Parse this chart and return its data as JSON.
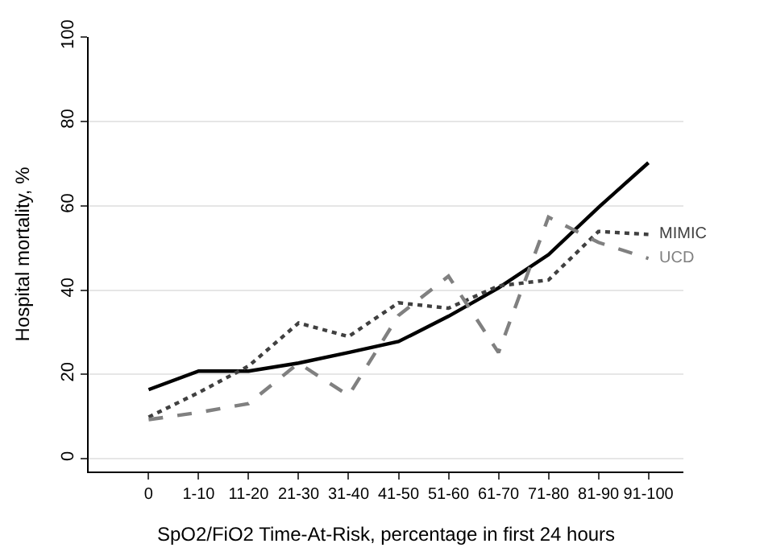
{
  "chart_data": {
    "type": "line",
    "xlabel": "SpO2/FiO2 Time-At-Risk, percentage in first 24 hours",
    "ylabel": "Hospital mortality, %",
    "categories": [
      "0",
      "1-10",
      "11-20",
      "21-30",
      "31-40",
      "41-50",
      "51-60",
      "61-70",
      "71-80",
      "81-90",
      "91-100"
    ],
    "series": [
      {
        "color": "#000000",
        "line_style": "solid",
        "values": [
          16.4,
          20.8,
          20.8,
          22.7,
          25.2,
          27.8,
          33.8,
          40.5,
          48.4,
          59.6,
          70.2
        ]
      },
      {
        "name": "MIMIC",
        "color": "#404040",
        "line_style": "dotted",
        "values": [
          9.9,
          15.7,
          22,
          32.2,
          29,
          37,
          35.7,
          41,
          42.4,
          53.9,
          53.2
        ]
      },
      {
        "name": "UCD",
        "color": "#808080",
        "line_style": "dashed",
        "values": [
          9.3,
          11,
          13.1,
          22.7,
          15,
          34,
          43.3,
          25.2,
          57.3,
          51.3,
          47.5
        ]
      }
    ],
    "ylim": [
      -3,
      100
    ],
    "yticks": [
      0,
      20,
      40,
      60,
      80,
      100
    ],
    "grid": "y",
    "legend": false,
    "marker": "none"
  }
}
